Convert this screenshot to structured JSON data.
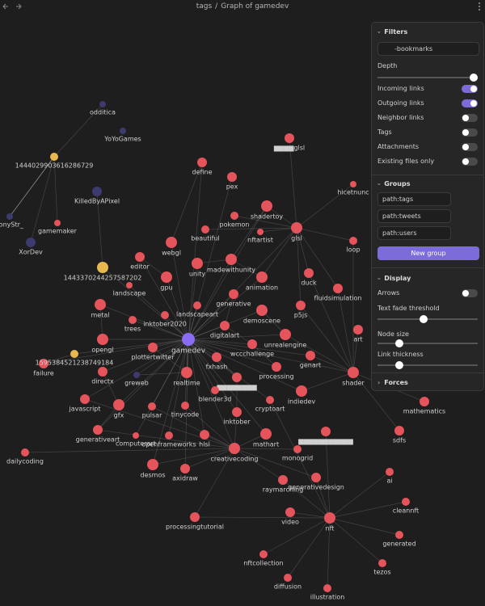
{
  "header": {
    "breadcrumb": [
      "tags",
      "Graph of gamedev"
    ],
    "separator": "/"
  },
  "graph": {
    "focus": {
      "label": "gamedev",
      "color": "#8b6cf5"
    },
    "groups": [
      {
        "query": "path:tags",
        "color": "#e5535b",
        "nodes": [
          "▆▆▆▆glsl",
          "define",
          "pex",
          "shadertoy",
          "glsl",
          "pokemon",
          "beautiful",
          "nftartist",
          "webgl",
          "editor",
          "unity",
          "madewithunity",
          "gpu",
          "animation",
          "duck",
          "loop",
          "hicetnunc",
          "landscape",
          "generative",
          "landscapeart",
          "p5js",
          "fluidsimulation",
          "metal",
          "demoscene",
          "inktober2020",
          "trees",
          "digitalart",
          "unrealengine",
          "art",
          "opengl",
          "plottertwitter",
          "wccchallenge",
          "fxhash",
          "genart",
          "shader",
          "failure",
          "directx",
          "realtime",
          "processing",
          "▆▆▆▆▆▆▆▆",
          "blender3d",
          "indiedev",
          "javascript",
          "gfx",
          "pulsar",
          "tinycode",
          "cryptoart",
          "inktober",
          "generativeart",
          "computerart",
          "openframeworks",
          "hlsl",
          "creativecoding",
          "mathart",
          "▆▆▆▆▆▆▆▆▆▆▆",
          "dailycoding",
          "desmos",
          "axidraw",
          "monogrid",
          "generativedesign",
          "raymarching",
          "ai",
          "cleannft",
          "video",
          "nft",
          "processingtutorial",
          "generated",
          "tezos",
          "nftcollection",
          "diffusion",
          "illustration",
          "mathematics",
          "sdfs",
          "gamemaker"
        ]
      },
      {
        "query": "path:tweets",
        "color": "#e8b84e",
        "nodes": [
          "1444029903616286729",
          "1443370244257587202",
          "1595384521238749184"
        ]
      },
      {
        "query": "path:users",
        "color": "#3d3a6e",
        "nodes": [
          "odditica",
          "YoYoGames",
          "KilledByAPixel",
          "XorDev",
          "TonyStr_",
          "greweb"
        ]
      }
    ]
  },
  "panel": {
    "filters": {
      "title": "Filters",
      "search": "-bookmarks",
      "depth_label": "Depth",
      "toggles": [
        {
          "label": "Incoming links",
          "on": true
        },
        {
          "label": "Outgoing links",
          "on": true
        },
        {
          "label": "Neighbor links",
          "on": false
        },
        {
          "label": "Tags",
          "on": false
        },
        {
          "label": "Attachments",
          "on": false
        },
        {
          "label": "Existing files only",
          "on": false
        }
      ]
    },
    "groups": {
      "title": "Groups",
      "button": "New group"
    },
    "display": {
      "title": "Display",
      "toggles": [
        {
          "label": "Arrows",
          "on": false
        }
      ],
      "sliders": [
        "Text fade threshold",
        "Node size",
        "Link thickness"
      ]
    },
    "forces": {
      "title": "Forces"
    }
  }
}
